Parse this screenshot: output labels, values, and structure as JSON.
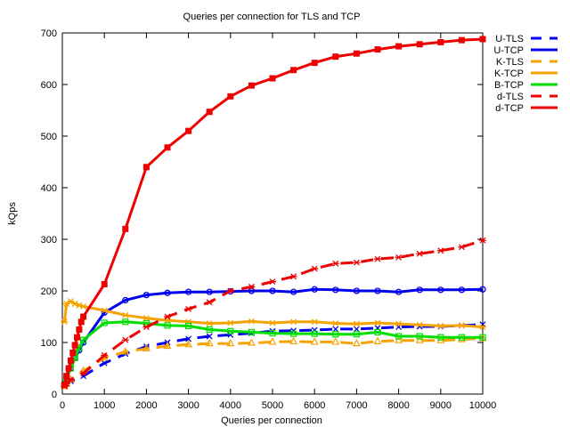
{
  "chart_data": {
    "type": "line",
    "title": "Queries per connection for TLS and TCP",
    "xlabel": "Queries per connection",
    "ylabel": "kQps",
    "xlim": [
      0,
      10000
    ],
    "ylim": [
      0,
      700
    ],
    "xticks": [
      0,
      1000,
      2000,
      3000,
      4000,
      5000,
      6000,
      7000,
      8000,
      9000,
      10000
    ],
    "yticks": [
      0,
      100,
      200,
      300,
      400,
      500,
      600,
      700
    ],
    "legend_position": "outside-right",
    "grid": false,
    "series": [
      {
        "name": "U-TLS",
        "color": "#0000ee",
        "dashed": true,
        "marker": "x",
        "points": [
          [
            50,
            15
          ],
          [
            100,
            20
          ],
          [
            200,
            25
          ],
          [
            500,
            35
          ],
          [
            1000,
            60
          ],
          [
            1500,
            78
          ],
          [
            2000,
            92
          ],
          [
            2500,
            100
          ],
          [
            3000,
            107
          ],
          [
            3500,
            112
          ],
          [
            4000,
            115
          ],
          [
            4500,
            118
          ],
          [
            5000,
            122
          ],
          [
            5500,
            123
          ],
          [
            6000,
            124
          ],
          [
            6500,
            126
          ],
          [
            7000,
            126
          ],
          [
            7500,
            128
          ],
          [
            8000,
            130
          ],
          [
            8500,
            131
          ],
          [
            9000,
            131
          ],
          [
            9500,
            133
          ],
          [
            10000,
            135
          ]
        ]
      },
      {
        "name": "U-TCP",
        "color": "#0000ee",
        "dashed": false,
        "marker": "circle",
        "points": [
          [
            50,
            20
          ],
          [
            100,
            30
          ],
          [
            200,
            50
          ],
          [
            300,
            70
          ],
          [
            400,
            85
          ],
          [
            500,
            100
          ],
          [
            1000,
            158
          ],
          [
            1500,
            182
          ],
          [
            2000,
            192
          ],
          [
            2500,
            196
          ],
          [
            3000,
            198
          ],
          [
            3500,
            198
          ],
          [
            4000,
            199
          ],
          [
            4500,
            200
          ],
          [
            5000,
            200
          ],
          [
            5500,
            198
          ],
          [
            6000,
            203
          ],
          [
            6500,
            202
          ],
          [
            7000,
            200
          ],
          [
            7500,
            200
          ],
          [
            8000,
            198
          ],
          [
            8500,
            202
          ],
          [
            9000,
            202
          ],
          [
            9500,
            202
          ],
          [
            10000,
            203
          ]
        ]
      },
      {
        "name": "K-TLS",
        "color": "#f5a300",
        "dashed": true,
        "marker": "triangle",
        "points": [
          [
            50,
            15
          ],
          [
            100,
            20
          ],
          [
            200,
            28
          ],
          [
            500,
            45
          ],
          [
            1000,
            70
          ],
          [
            1500,
            82
          ],
          [
            2000,
            88
          ],
          [
            2500,
            93
          ],
          [
            3000,
            96
          ],
          [
            3500,
            98
          ],
          [
            4000,
            98
          ],
          [
            4500,
            99
          ],
          [
            5000,
            101
          ],
          [
            5500,
            102
          ],
          [
            6000,
            101
          ],
          [
            6500,
            101
          ],
          [
            7000,
            98
          ],
          [
            7500,
            102
          ],
          [
            8000,
            104
          ],
          [
            8500,
            104
          ],
          [
            9000,
            104
          ],
          [
            9500,
            106
          ],
          [
            10000,
            108
          ]
        ]
      },
      {
        "name": "K-TCP",
        "color": "#f5a300",
        "dashed": false,
        "marker": "star",
        "points": [
          [
            50,
            140
          ],
          [
            100,
            175
          ],
          [
            200,
            180
          ],
          [
            300,
            175
          ],
          [
            400,
            172
          ],
          [
            500,
            170
          ],
          [
            1000,
            162
          ],
          [
            1500,
            153
          ],
          [
            2000,
            147
          ],
          [
            2500,
            143
          ],
          [
            3000,
            140
          ],
          [
            3500,
            137
          ],
          [
            4000,
            138
          ],
          [
            4500,
            141
          ],
          [
            5000,
            138
          ],
          [
            5500,
            140
          ],
          [
            6000,
            140
          ],
          [
            6500,
            137
          ],
          [
            7000,
            136
          ],
          [
            7500,
            138
          ],
          [
            8000,
            136
          ],
          [
            8500,
            134
          ],
          [
            9000,
            132
          ],
          [
            9500,
            133
          ],
          [
            10000,
            130
          ]
        ]
      },
      {
        "name": "B-TCP",
        "color": "#00dd00",
        "dashed": false,
        "marker": "square",
        "points": [
          [
            50,
            18
          ],
          [
            100,
            30
          ],
          [
            200,
            50
          ],
          [
            300,
            70
          ],
          [
            400,
            90
          ],
          [
            500,
            105
          ],
          [
            1000,
            138
          ],
          [
            1500,
            140
          ],
          [
            2000,
            137
          ],
          [
            2500,
            133
          ],
          [
            3000,
            132
          ],
          [
            3500,
            125
          ],
          [
            4000,
            122
          ],
          [
            4500,
            120
          ],
          [
            5000,
            118
          ],
          [
            5500,
            117
          ],
          [
            6000,
            117
          ],
          [
            6500,
            116
          ],
          [
            7000,
            116
          ],
          [
            7500,
            120
          ],
          [
            8000,
            112
          ],
          [
            8500,
            112
          ],
          [
            9000,
            110
          ],
          [
            9500,
            110
          ],
          [
            10000,
            110
          ]
        ]
      },
      {
        "name": "d-TLS",
        "color": "#ee0000",
        "dashed": true,
        "marker": "star",
        "points": [
          [
            50,
            15
          ],
          [
            100,
            20
          ],
          [
            200,
            28
          ],
          [
            500,
            40
          ],
          [
            1000,
            75
          ],
          [
            1500,
            105
          ],
          [
            2000,
            130
          ],
          [
            2500,
            150
          ],
          [
            3000,
            165
          ],
          [
            3500,
            178
          ],
          [
            4000,
            200
          ],
          [
            4500,
            208
          ],
          [
            5000,
            218
          ],
          [
            5500,
            228
          ],
          [
            6000,
            243
          ],
          [
            6500,
            253
          ],
          [
            7000,
            255
          ],
          [
            7500,
            262
          ],
          [
            8000,
            265
          ],
          [
            8500,
            272
          ],
          [
            9000,
            278
          ],
          [
            9500,
            285
          ],
          [
            10000,
            298
          ]
        ]
      },
      {
        "name": "d-TCP",
        "color": "#ee0000",
        "dashed": false,
        "marker": "filled",
        "points": [
          [
            50,
            18
          ],
          [
            100,
            35
          ],
          [
            150,
            50
          ],
          [
            200,
            65
          ],
          [
            250,
            80
          ],
          [
            300,
            95
          ],
          [
            350,
            110
          ],
          [
            400,
            125
          ],
          [
            450,
            140
          ],
          [
            500,
            150
          ],
          [
            1000,
            213
          ],
          [
            1500,
            320
          ],
          [
            2000,
            440
          ],
          [
            2500,
            478
          ],
          [
            3000,
            510
          ],
          [
            3500,
            547
          ],
          [
            4000,
            577
          ],
          [
            4500,
            598
          ],
          [
            5000,
            612
          ],
          [
            5500,
            628
          ],
          [
            6000,
            642
          ],
          [
            6500,
            654
          ],
          [
            7000,
            660
          ],
          [
            7500,
            668
          ],
          [
            8000,
            674
          ],
          [
            8500,
            678
          ],
          [
            9000,
            682
          ],
          [
            9500,
            686
          ],
          [
            10000,
            688
          ]
        ]
      }
    ]
  }
}
